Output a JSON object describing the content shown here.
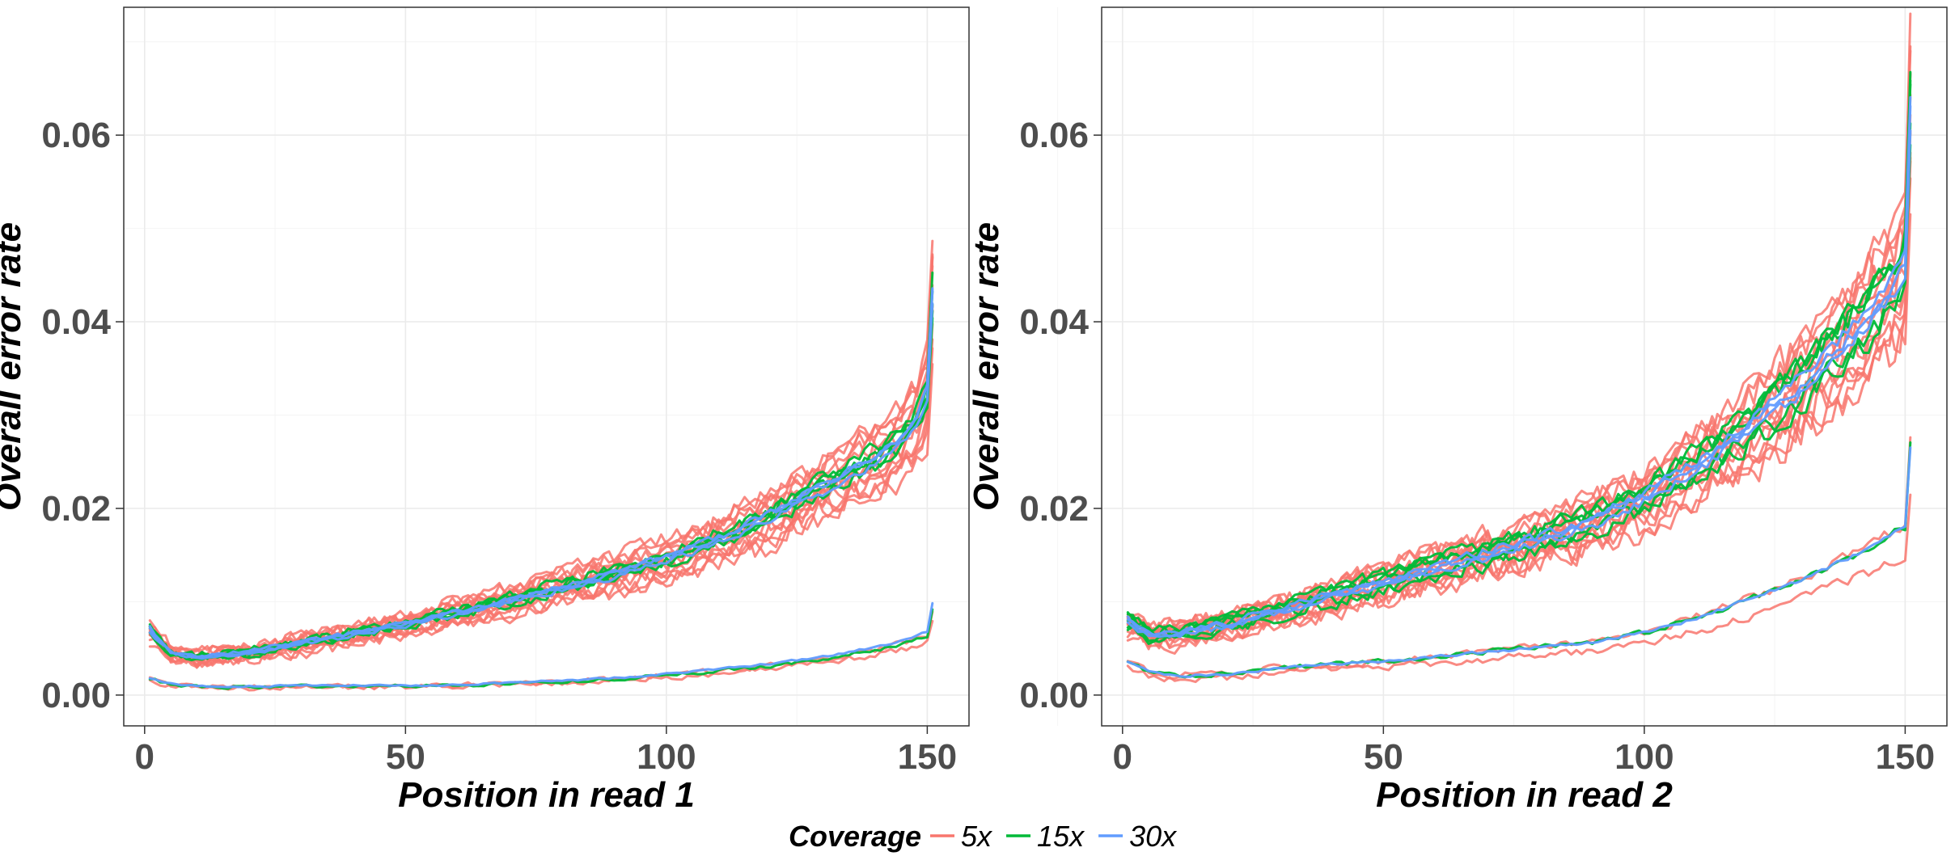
{
  "chart_data": [
    {
      "type": "line",
      "xlabel": "Position in read 1",
      "ylabel": "Overall error rate",
      "xlim": [
        -4,
        158
      ],
      "ylim": [
        -0.0033,
        0.0737
      ],
      "xticks": [
        0,
        50,
        100,
        150
      ],
      "xtick_labels": [
        "0",
        "50",
        "100",
        "150"
      ],
      "yticks": [
        0.0,
        0.02,
        0.04,
        0.06
      ],
      "ytick_labels": [
        "0.00",
        "0.02",
        "0.04",
        "0.06"
      ],
      "grid": true,
      "series_profiles": {
        "upper": {
          "x": [
            1,
            5,
            10,
            20,
            30,
            40,
            50,
            60,
            70,
            80,
            90,
            100,
            110,
            120,
            130,
            140,
            145,
            148,
            150,
            151
          ],
          "y": [
            0.007,
            0.0045,
            0.004,
            0.0045,
            0.0055,
            0.0065,
            0.0075,
            0.0088,
            0.01,
            0.0115,
            0.0128,
            0.0145,
            0.0165,
            0.019,
            0.022,
            0.025,
            0.027,
            0.029,
            0.032,
            0.042
          ]
        },
        "lower": {
          "x": [
            1,
            5,
            10,
            20,
            30,
            40,
            50,
            60,
            70,
            80,
            90,
            100,
            110,
            120,
            130,
            140,
            145,
            148,
            150,
            151
          ],
          "y": [
            0.0018,
            0.0012,
            0.0009,
            0.0009,
            0.001,
            0.001,
            0.001,
            0.0011,
            0.0013,
            0.0015,
            0.0018,
            0.0022,
            0.0027,
            0.0033,
            0.004,
            0.005,
            0.0057,
            0.0062,
            0.0066,
            0.0095
          ]
        }
      },
      "series": [
        {
          "name": "5x",
          "color": "#F8766D",
          "upper_count": 14,
          "lower_count": 2,
          "noise": 0.0009,
          "offset_spread": 0.16
        },
        {
          "name": "15x",
          "color": "#00BA38",
          "upper_count": 5,
          "lower_count": 1,
          "noise": 0.00055,
          "offset_spread": 0.07
        },
        {
          "name": "30x",
          "color": "#619CFF",
          "upper_count": 3,
          "lower_count": 1,
          "noise": 0.0003,
          "offset_spread": 0.04
        }
      ]
    },
    {
      "type": "line",
      "xlabel": "Position in read 2",
      "ylabel": "Overall error rate",
      "xlim": [
        -4,
        158
      ],
      "ylim": [
        -0.0033,
        0.0737
      ],
      "xticks": [
        0,
        50,
        100,
        150
      ],
      "xtick_labels": [
        "0",
        "50",
        "100",
        "150"
      ],
      "yticks": [
        0.0,
        0.02,
        0.04,
        0.06
      ],
      "ytick_labels": [
        "0.00",
        "0.02",
        "0.04",
        "0.06"
      ],
      "grid": true,
      "series_profiles": {
        "upper": {
          "x": [
            1,
            5,
            10,
            20,
            30,
            40,
            50,
            60,
            70,
            80,
            90,
            100,
            110,
            120,
            130,
            140,
            145,
            148,
            150,
            151
          ],
          "y": [
            0.008,
            0.0065,
            0.0065,
            0.0075,
            0.009,
            0.0105,
            0.012,
            0.0135,
            0.015,
            0.0165,
            0.0185,
            0.021,
            0.0245,
            0.0285,
            0.033,
            0.0385,
            0.042,
            0.044,
            0.0465,
            0.063
          ]
        },
        "lower": {
          "x": [
            1,
            5,
            10,
            20,
            30,
            40,
            50,
            60,
            70,
            80,
            90,
            100,
            110,
            120,
            130,
            140,
            145,
            148,
            150,
            151
          ],
          "y": [
            0.0035,
            0.0025,
            0.002,
            0.0022,
            0.0028,
            0.0032,
            0.0035,
            0.004,
            0.0045,
            0.005,
            0.0055,
            0.0065,
            0.008,
            0.01,
            0.012,
            0.0145,
            0.016,
            0.017,
            0.0175,
            0.026
          ]
        }
      },
      "series": [
        {
          "name": "5x",
          "color": "#F8766D",
          "upper_count": 14,
          "lower_count": 2,
          "noise": 0.0011,
          "offset_spread": 0.16
        },
        {
          "name": "15x",
          "color": "#00BA38",
          "upper_count": 5,
          "lower_count": 1,
          "noise": 0.0007,
          "offset_spread": 0.07
        },
        {
          "name": "30x",
          "color": "#619CFF",
          "upper_count": 3,
          "lower_count": 1,
          "noise": 0.0004,
          "offset_spread": 0.04
        }
      ]
    }
  ],
  "legend": {
    "title": "Coverage",
    "position": "bottom",
    "items": [
      {
        "label": "5x",
        "color": "#F8766D"
      },
      {
        "label": "15x",
        "color": "#00BA38"
      },
      {
        "label": "30x",
        "color": "#619CFF"
      }
    ]
  }
}
